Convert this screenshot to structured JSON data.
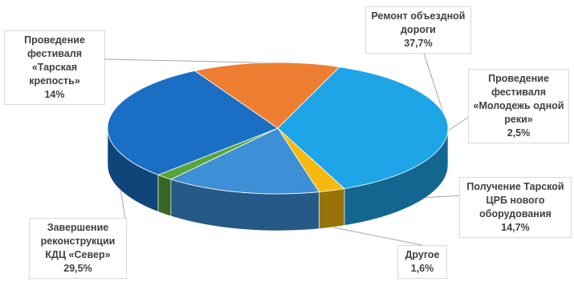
{
  "chart_data": {
    "type": "pie",
    "style": "3d",
    "title": "",
    "slices": [
      {
        "label": "Ремонт объездной\nдороги",
        "value": 37.7,
        "display": "37,7%",
        "color": "#1ea5e8"
      },
      {
        "label": "Проведение\nфестиваля\n«Молодежь одной\nреки»",
        "value": 2.5,
        "display": "2,5%",
        "color": "#f5b90f"
      },
      {
        "label": "Получение Тарской\nЦРБ нового\nоборудования",
        "value": 14.7,
        "display": "14,7%",
        "color": "#3d8fd6"
      },
      {
        "label": "Другое",
        "value": 1.6,
        "display": "1,6%",
        "color": "#5aa53a"
      },
      {
        "label": "Завершение\nреконструкции\nКДЦ «Север»",
        "value": 29.5,
        "display": "29,5%",
        "color": "#1a6fc4"
      },
      {
        "label": "Проведение\nфестиваля\n«Тарская\nкрепость»",
        "value": 14.0,
        "display": "14%",
        "color": "#ed7d31"
      }
    ],
    "legend": "none",
    "data_labels": "callouts"
  }
}
